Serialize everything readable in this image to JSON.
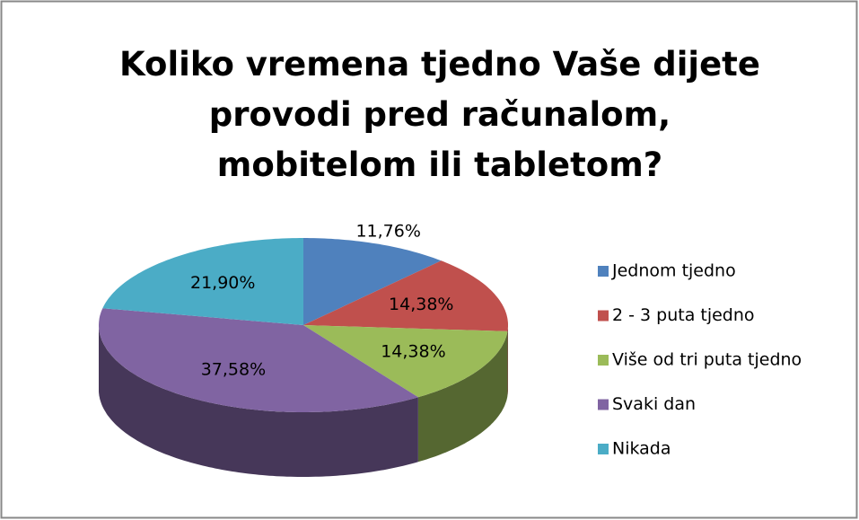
{
  "chart_data": {
    "type": "pie",
    "title": "Koliko vremena tjedno Vaše dijete provodi pred računalom, mobitelom ili tabletom?",
    "categories": [
      "Jednom tjedno",
      "2 - 3 puta tjedno",
      "Više od tri puta tjedno",
      "Svaki dan",
      "Nikada"
    ],
    "values": [
      11.76,
      14.38,
      14.38,
      37.58,
      21.9
    ],
    "value_labels": [
      "11,76%",
      "14,38%",
      "14,38%",
      "37,58%",
      "21,90%"
    ],
    "colors": [
      "#4f81bd",
      "#c0504d",
      "#9bbb59",
      "#8064a2",
      "#4bacc6"
    ],
    "legend": "right"
  }
}
